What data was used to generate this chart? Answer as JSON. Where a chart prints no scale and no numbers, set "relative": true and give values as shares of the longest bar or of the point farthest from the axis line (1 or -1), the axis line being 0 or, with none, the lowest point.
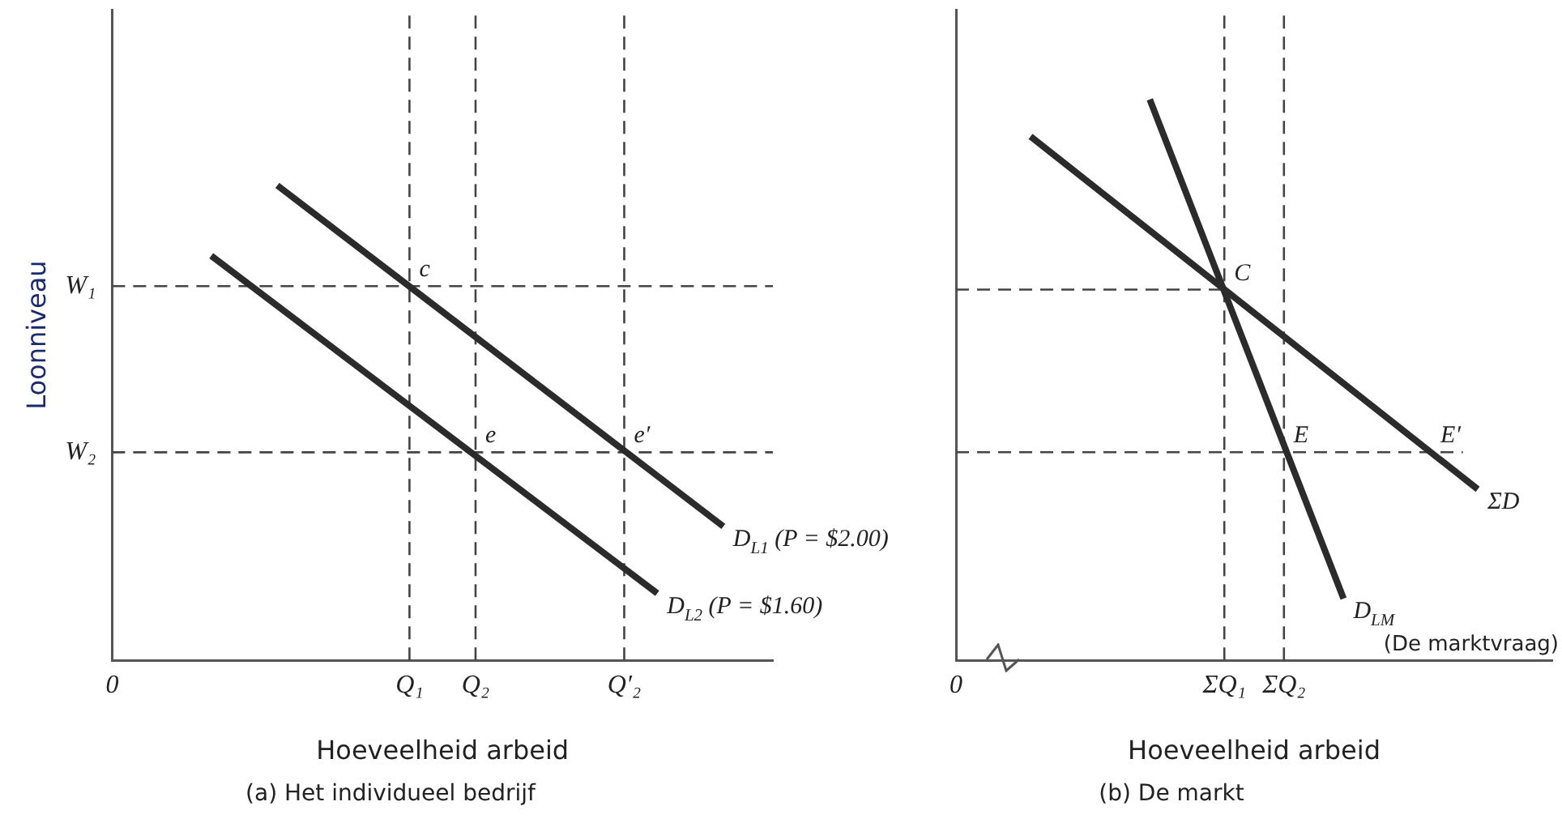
{
  "chart_data": [
    {
      "type": "line",
      "relative": true,
      "title": "(a) Het individueel bedrijf",
      "xlabel": "Hoeveelheid arbeid",
      "ylabel": "Loonniveau",
      "categories": [
        "0",
        null,
        null,
        null,
        null,
        null,
        null,
        null,
        null,
        null,
        null,
        null,
        null,
        null,
        null,
        null,
        null,
        null,
        "Q₁",
        null,
        null,
        null,
        "Q₂",
        null,
        null,
        null,
        null,
        null,
        null,
        null,
        null,
        "Q′₂",
        null,
        null,
        null,
        null,
        null,
        null,
        null,
        null,
        null
      ],
      "series": [
        {
          "name": "D$_{L1}$ (P = $2.00)",
          "color": "#2b2b2b",
          "values": [
            null,
            null,
            null,
            null,
            null,
            null,
            null,
            null,
            null,
            null,
            1,
            null,
            null,
            null,
            null,
            null,
            null,
            null,
            null,
            null,
            null,
            null,
            null,
            null,
            null,
            null,
            null,
            null,
            null,
            null,
            null,
            null,
            null,
            null,
            null,
            null,
            null,
            0.282,
            null,
            null,
            null
          ]
        },
        {
          "name": "D$_{L2}$ (P = $1.60)",
          "color": "#2b2b2b",
          "values": [
            null,
            null,
            null,
            null,
            null,
            null,
            0.852,
            null,
            null,
            null,
            null,
            null,
            null,
            null,
            null,
            null,
            null,
            null,
            null,
            null,
            null,
            null,
            null,
            null,
            null,
            null,
            null,
            null,
            null,
            null,
            null,
            null,
            null,
            0.141,
            null,
            null,
            null,
            null,
            null,
            null,
            null
          ]
        }
      ],
      "ref_lines": [
        {
          "axis": "y",
          "value": 0.788,
          "label": "W₁",
          "color": "#444444",
          "line_style": "dashed"
        },
        {
          "axis": "y",
          "value": 0.438,
          "label": "W₂",
          "color": "#444444",
          "line_style": "dashed"
        },
        {
          "axis": "x",
          "value": "Q₁",
          "color": "#444444",
          "line_style": "dashed"
        },
        {
          "axis": "x",
          "value": "Q₂",
          "color": "#444444",
          "line_style": "dashed"
        },
        {
          "axis": "x",
          "value": "Q′₂",
          "color": "#444444",
          "line_style": "dashed"
        }
      ],
      "annotations": [
        {
          "text": "c",
          "x": "Q₁",
          "y": 0.788
        },
        {
          "text": "e",
          "x": "Q₂",
          "y": 0.438
        },
        {
          "text": "e′",
          "x": "Q′₂",
          "y": 0.438
        }
      ],
      "legend": false,
      "marker": "none",
      "line_style": "solid"
    },
    {
      "type": "line",
      "relative": true,
      "title": "(b) De markt",
      "xlabel": "Hoeveelheid arbeid",
      "categories": [
        "0",
        null,
        null,
        null,
        null,
        null,
        null,
        null,
        null,
        null,
        null,
        null,
        null,
        null,
        null,
        null,
        null,
        null,
        "ΣQ₁",
        null,
        null,
        null,
        "ΣQ₂",
        null,
        null,
        null,
        null,
        null,
        null,
        null,
        null,
        null,
        null,
        null,
        null,
        null,
        null,
        null,
        null,
        null,
        null
      ],
      "series": [
        {
          "name": "ΣD",
          "color": "#2b2b2b",
          "values": [
            null,
            null,
            null,
            null,
            null,
            0.934,
            null,
            null,
            null,
            null,
            null,
            null,
            null,
            null,
            null,
            null,
            null,
            null,
            null,
            null,
            null,
            null,
            null,
            null,
            null,
            null,
            null,
            null,
            null,
            null,
            null,
            null,
            null,
            null,
            null,
            0.305,
            null,
            null,
            null,
            null,
            null
          ]
        },
        {
          "name": "D$_{LM}$",
          "color": "#2b2b2b",
          "values": [
            null,
            null,
            null,
            null,
            null,
            null,
            null,
            null,
            null,
            null,
            null,
            null,
            null,
            1,
            null,
            null,
            null,
            null,
            null,
            null,
            null,
            null,
            null,
            null,
            null,
            null,
            0.11,
            null,
            null,
            null,
            null,
            null,
            null,
            null,
            null,
            null,
            null,
            null,
            null,
            null,
            null
          ]
        },
        {
          "color": "#444444",
          "line_style": "dashed",
          "values": [
            0.661,
            null,
            null,
            null,
            null,
            null,
            null,
            null,
            null,
            null,
            null,
            null,
            null,
            null,
            null,
            null,
            null,
            null,
            0.661,
            null,
            null,
            null,
            null,
            null,
            null,
            null,
            null,
            null,
            null,
            null,
            null,
            null,
            null,
            null,
            null,
            null,
            null,
            null,
            null,
            null,
            null
          ]
        },
        {
          "color": "#444444",
          "line_style": "dashed",
          "values": [
            0.371,
            null,
            null,
            null,
            null,
            null,
            null,
            null,
            null,
            null,
            null,
            null,
            null,
            null,
            null,
            null,
            null,
            null,
            null,
            null,
            null,
            null,
            null,
            null,
            null,
            null,
            null,
            null,
            null,
            null,
            null,
            null,
            null,
            null,
            0.371,
            null,
            null,
            null,
            null,
            null,
            null
          ]
        }
      ],
      "ref_lines": [
        {
          "axis": "x",
          "value": "ΣQ₁",
          "color": "#444444",
          "line_style": "dashed"
        },
        {
          "axis": "x",
          "value": "ΣQ₂",
          "color": "#444444",
          "line_style": "dashed"
        }
      ],
      "annotations": [
        "(De marktvraag)",
        {
          "text": "C",
          "x": "ΣQ₁",
          "y": 0.661
        },
        {
          "text": "E",
          "x": "ΣQ₂",
          "y": 0.371
        },
        {
          "text": "E′",
          "y": 0.371
        }
      ],
      "legend": false,
      "marker": "none",
      "line_style": "solid"
    }
  ]
}
